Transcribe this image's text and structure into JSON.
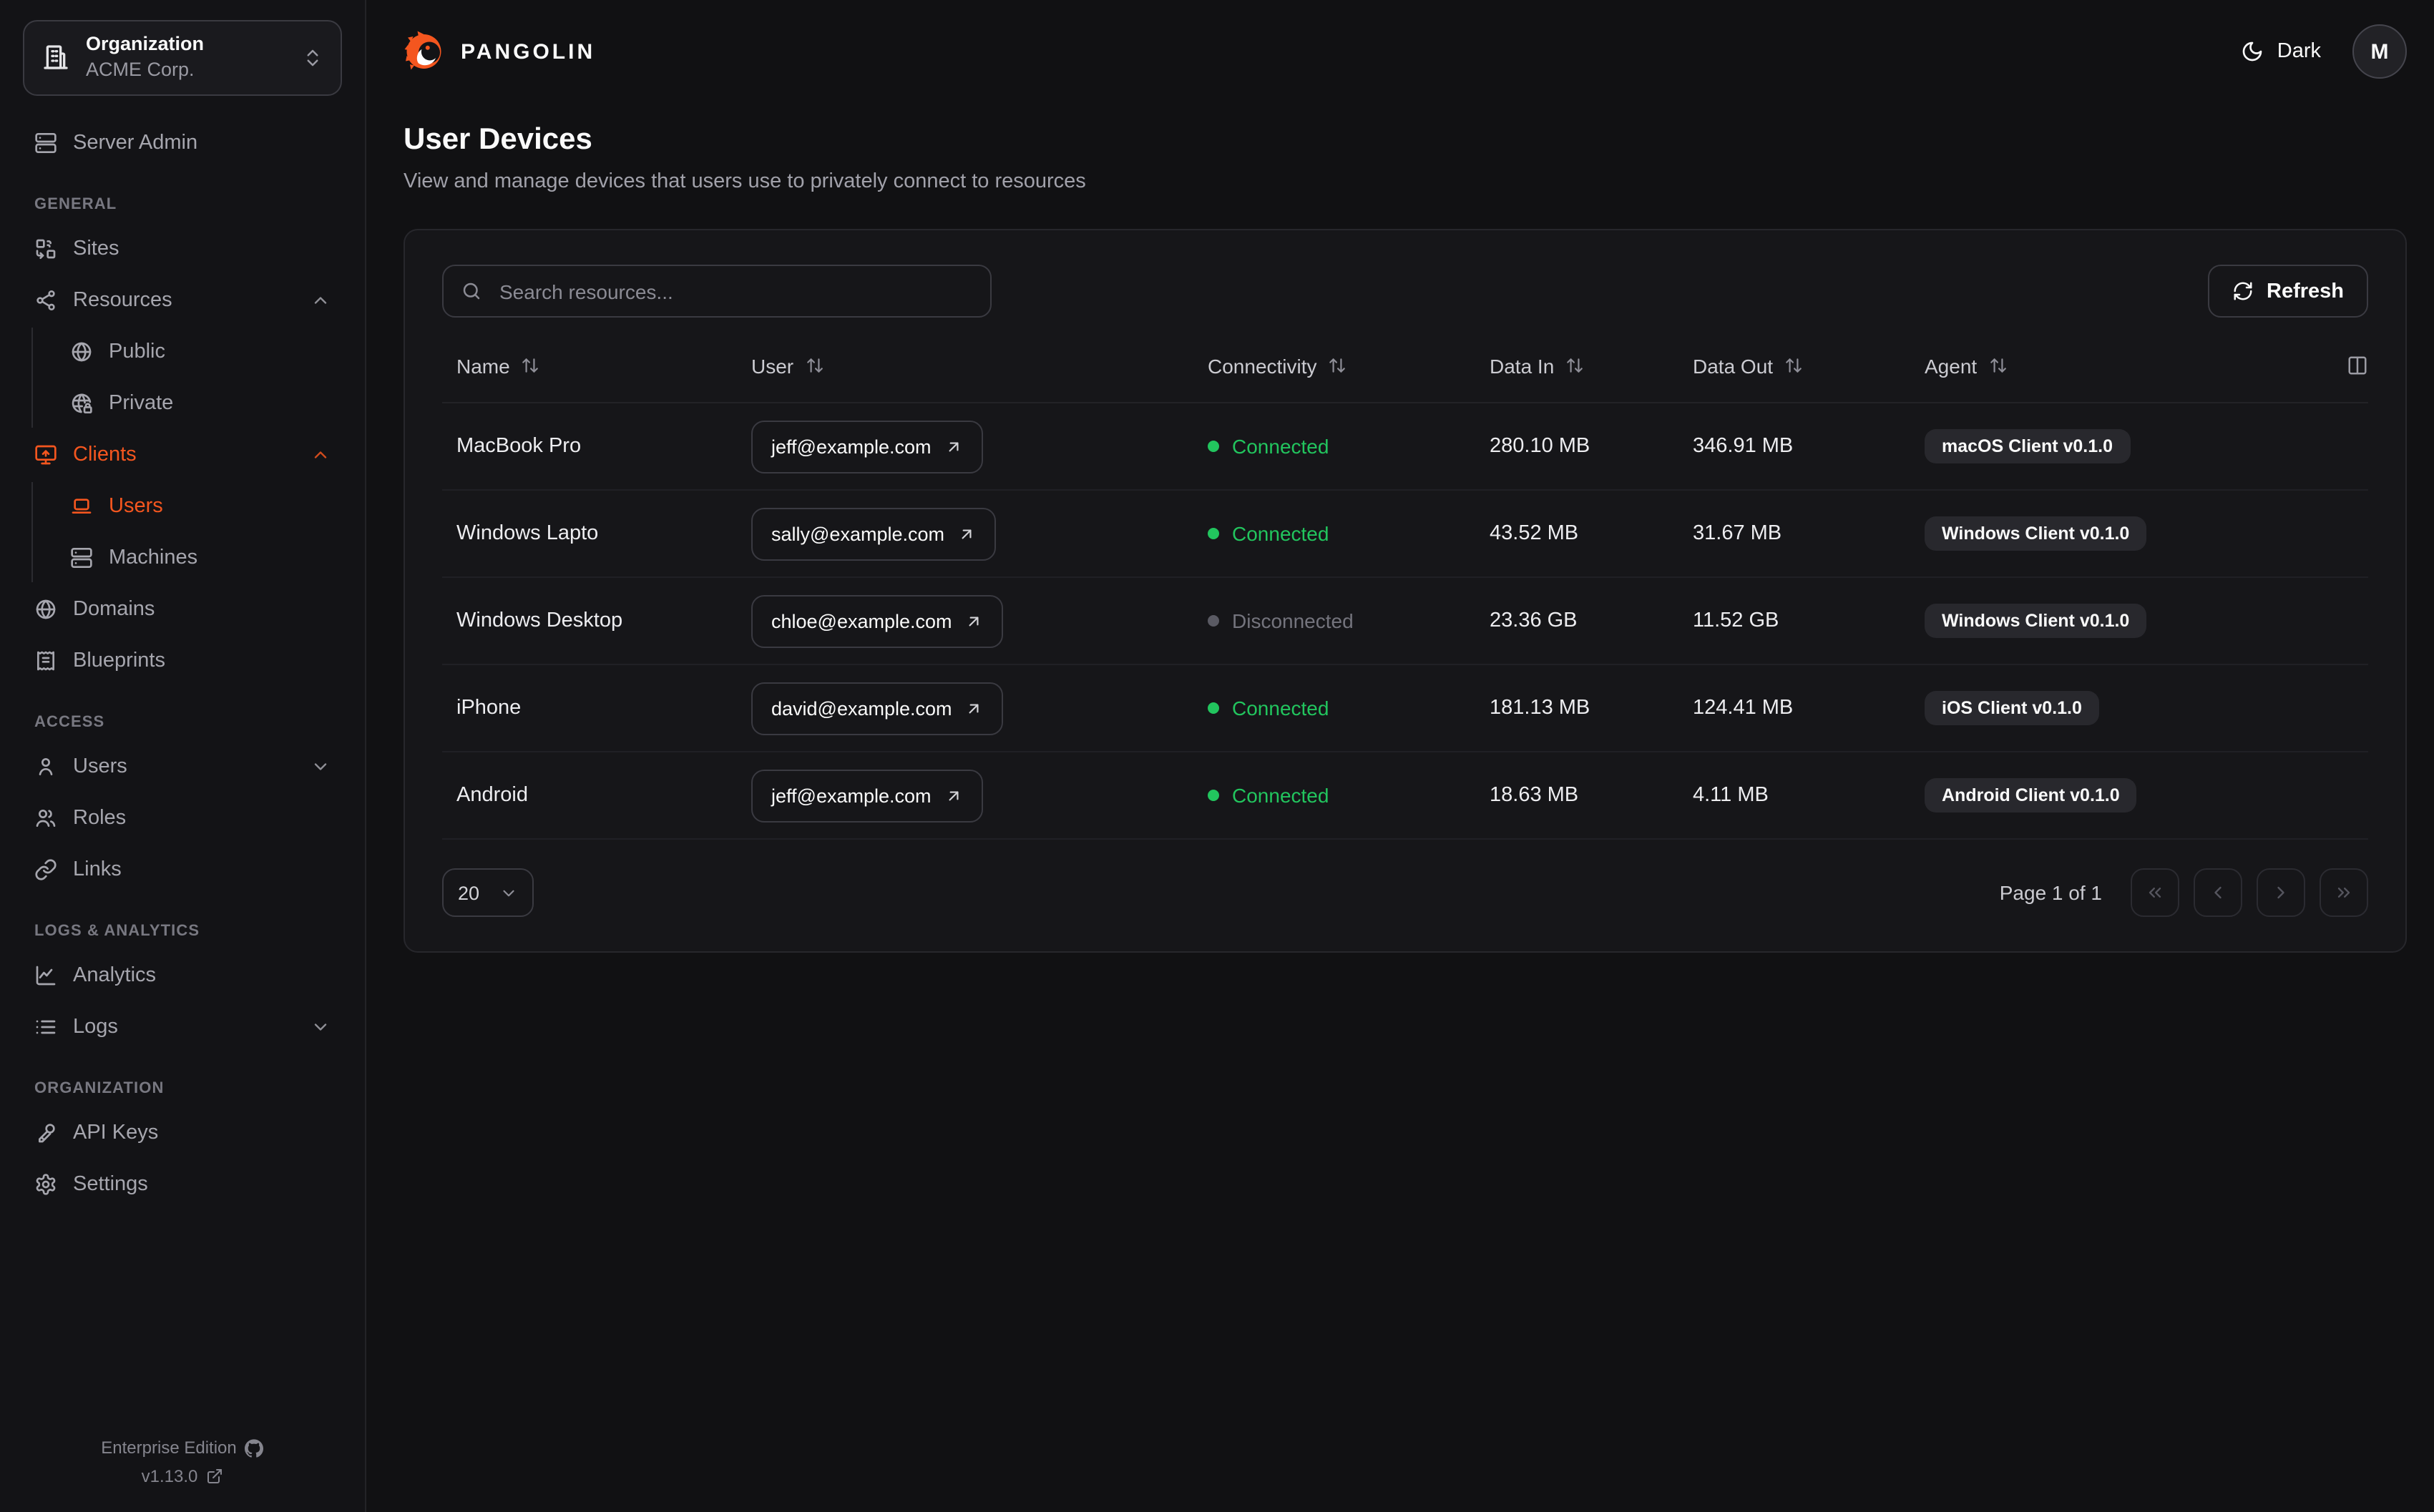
{
  "colors": {
    "accent": "#F4561F",
    "connected": "#22C55E",
    "disconnected": "#74747D"
  },
  "org_selector": {
    "label": "Organization",
    "value": "ACME Corp."
  },
  "sidebar": {
    "sections": [
      {
        "label": "",
        "items": [
          {
            "id": "server-admin",
            "label": "Server Admin",
            "icon": "server-icon"
          }
        ]
      },
      {
        "label": "GENERAL",
        "items": [
          {
            "id": "sites",
            "label": "Sites",
            "icon": "sites-icon"
          },
          {
            "id": "resources",
            "label": "Resources",
            "icon": "waypoints-icon",
            "chevron": "up",
            "children": [
              {
                "id": "public",
                "label": "Public",
                "icon": "globe-icon"
              },
              {
                "id": "private",
                "label": "Private",
                "icon": "globe-lock-icon"
              }
            ]
          },
          {
            "id": "clients",
            "label": "Clients",
            "icon": "monitor-up-icon",
            "chevron": "up",
            "active": true,
            "children": [
              {
                "id": "client-users",
                "label": "Users",
                "icon": "laptop-icon",
                "active": true
              },
              {
                "id": "machines",
                "label": "Machines",
                "icon": "server-icon"
              }
            ]
          },
          {
            "id": "domains",
            "label": "Domains",
            "icon": "globe-icon"
          },
          {
            "id": "blueprints",
            "label": "Blueprints",
            "icon": "receipt-icon"
          }
        ]
      },
      {
        "label": "ACCESS",
        "items": [
          {
            "id": "users",
            "label": "Users",
            "icon": "user-icon",
            "chevron": "down"
          },
          {
            "id": "roles",
            "label": "Roles",
            "icon": "users-icon"
          },
          {
            "id": "links",
            "label": "Links",
            "icon": "link-icon"
          }
        ]
      },
      {
        "label": "LOGS & ANALYTICS",
        "items": [
          {
            "id": "analytics",
            "label": "Analytics",
            "icon": "chart-line-icon"
          },
          {
            "id": "logs",
            "label": "Logs",
            "icon": "list-icon",
            "chevron": "down"
          }
        ]
      },
      {
        "label": "ORGANIZATION",
        "items": [
          {
            "id": "api-keys",
            "label": "API Keys",
            "icon": "key-icon"
          },
          {
            "id": "settings",
            "label": "Settings",
            "icon": "gear-icon"
          }
        ]
      }
    ],
    "footer": {
      "edition": "Enterprise Edition",
      "version": "v1.13.0"
    }
  },
  "header": {
    "brand": "PANGOLIN",
    "theme_label": "Dark",
    "avatar_initial": "M"
  },
  "page": {
    "title": "User Devices",
    "subtitle": "View and manage devices that users use to privately connect to resources"
  },
  "toolbar": {
    "search_placeholder": "Search resources...",
    "refresh_label": "Refresh"
  },
  "table": {
    "columns": [
      "Name",
      "User",
      "Connectivity",
      "Data In",
      "Data Out",
      "Agent"
    ],
    "rows": [
      {
        "name": "MacBook Pro",
        "user": "jeff@example.com",
        "connectivity": "Connected",
        "connected": true,
        "data_in": "280.10 MB",
        "data_out": "346.91 MB",
        "agent": "macOS Client v0.1.0"
      },
      {
        "name": "Windows Lapto",
        "user": "sally@example.com",
        "connectivity": "Connected",
        "connected": true,
        "data_in": "43.52 MB",
        "data_out": "31.67 MB",
        "agent": "Windows Client v0.1.0"
      },
      {
        "name": "Windows Desktop",
        "user": "chloe@example.com",
        "connectivity": "Disconnected",
        "connected": false,
        "data_in": "23.36 GB",
        "data_out": "11.52 GB",
        "agent": "Windows Client v0.1.0"
      },
      {
        "name": "iPhone",
        "user": "david@example.com",
        "connectivity": "Connected",
        "connected": true,
        "data_in": "181.13 MB",
        "data_out": "124.41 MB",
        "agent": "iOS Client v0.1.0"
      },
      {
        "name": "Android",
        "user": "jeff@example.com",
        "connectivity": "Connected",
        "connected": true,
        "data_in": "18.63 MB",
        "data_out": "4.11 MB",
        "agent": "Android Client v0.1.0"
      }
    ]
  },
  "pagination": {
    "page_size": "20",
    "page_info": "Page 1 of 1"
  }
}
